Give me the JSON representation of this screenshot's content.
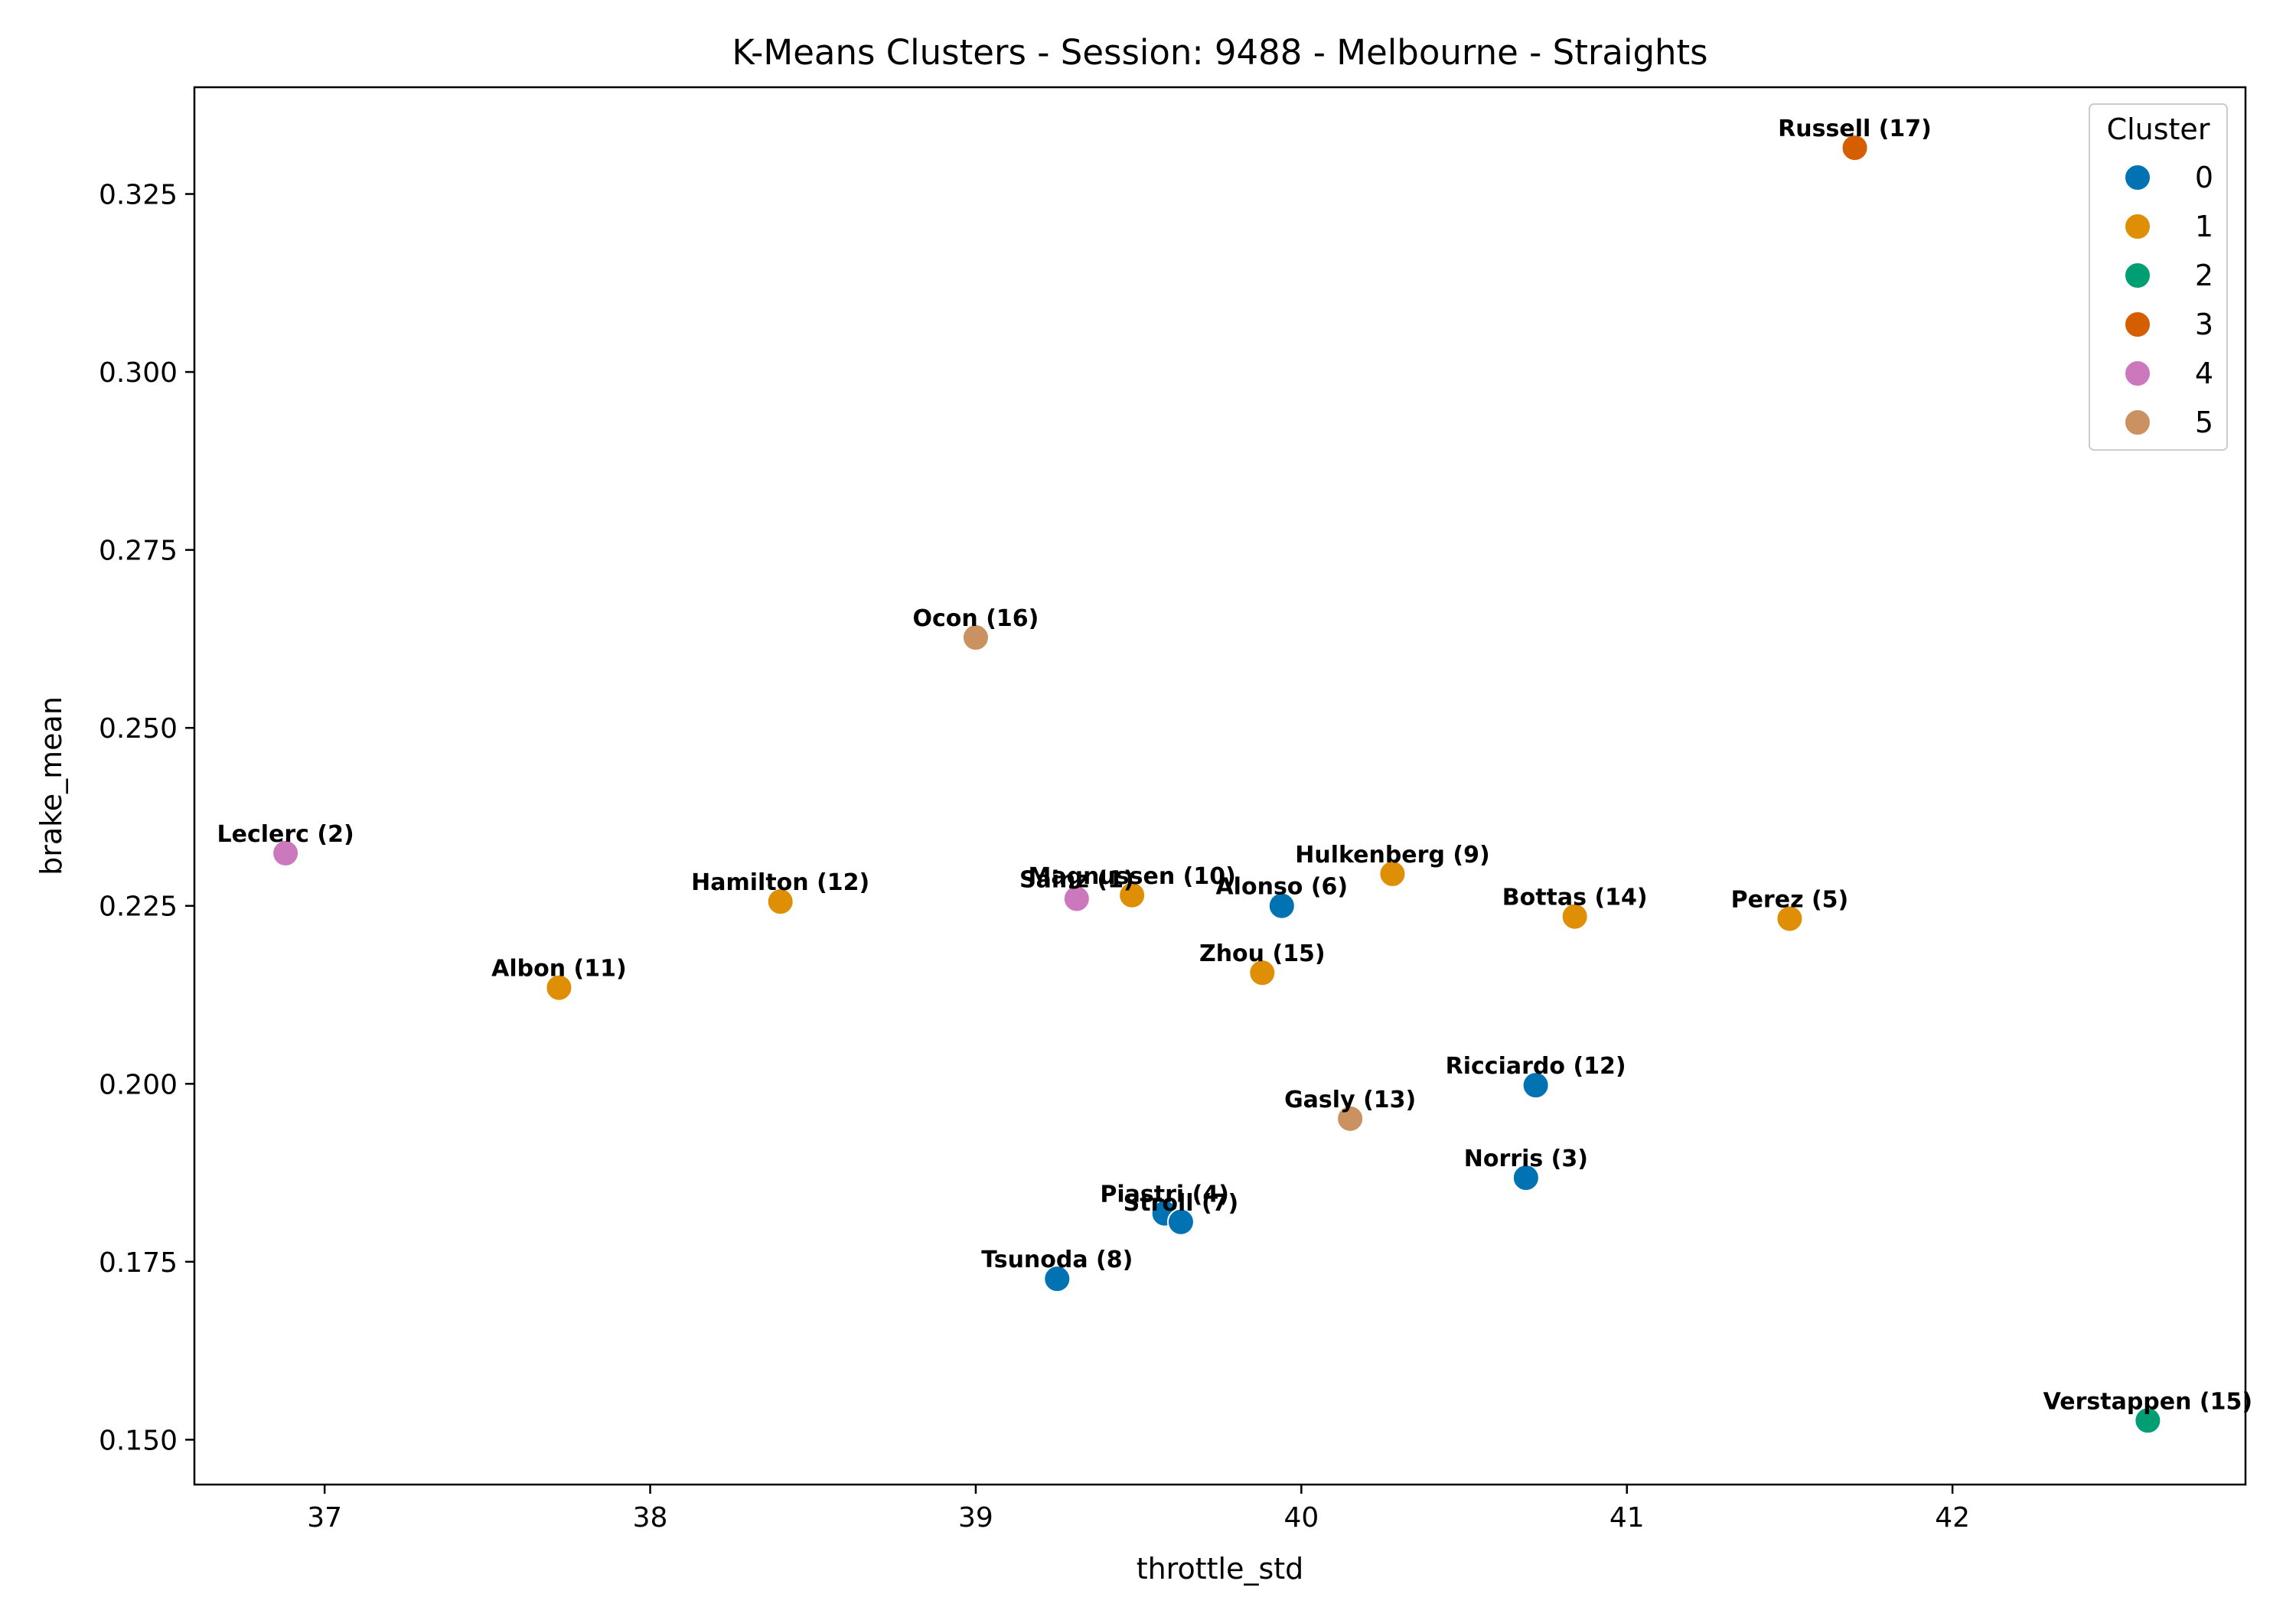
{
  "chart_data": {
    "type": "scatter",
    "title": "K-Means Clusters - Session: 9488 - Melbourne - Straights",
    "xlabel": "throttle_std",
    "ylabel": "brake_mean",
    "xlim": [
      36.6,
      42.9
    ],
    "ylim": [
      0.1437,
      0.34
    ],
    "xticks": [
      37,
      38,
      39,
      40,
      41,
      42
    ],
    "yticks": [
      0.15,
      0.175,
      0.2,
      0.225,
      0.25,
      0.275,
      0.3,
      0.325
    ],
    "ytick_labels": [
      "0.150",
      "0.175",
      "0.200",
      "0.225",
      "0.250",
      "0.275",
      "0.300",
      "0.325"
    ],
    "grid": false,
    "legend": {
      "title": "Cluster",
      "placement": "top-right",
      "entries": [
        {
          "label": "0",
          "color": "#0173b2"
        },
        {
          "label": "1",
          "color": "#de8f05"
        },
        {
          "label": "2",
          "color": "#029e73"
        },
        {
          "label": "3",
          "color": "#d55e00"
        },
        {
          "label": "4",
          "color": "#cc78bc"
        },
        {
          "label": "5",
          "color": "#ca9161"
        }
      ]
    },
    "points": [
      {
        "label": "Russell (17)",
        "x": 41.7,
        "y": 0.3315,
        "cluster": 3
      },
      {
        "label": "Ocon (16)",
        "x": 39.0,
        "y": 0.2627,
        "cluster": 5
      },
      {
        "label": "Leclerc (2)",
        "x": 36.88,
        "y": 0.2324,
        "cluster": 4
      },
      {
        "label": "Hamilton (12)",
        "x": 38.4,
        "y": 0.2256,
        "cluster": 1
      },
      {
        "label": "Sainz (1)",
        "x": 39.31,
        "y": 0.226,
        "cluster": 4
      },
      {
        "label": "Magnussen (10)",
        "x": 39.48,
        "y": 0.2265,
        "cluster": 1
      },
      {
        "label": "Alonso (6)",
        "x": 39.94,
        "y": 0.225,
        "cluster": 0
      },
      {
        "label": "Hulkenberg (9)",
        "x": 40.28,
        "y": 0.2295,
        "cluster": 1
      },
      {
        "label": "Bottas (14)",
        "x": 40.84,
        "y": 0.2235,
        "cluster": 1
      },
      {
        "label": "Perez (5)",
        "x": 41.5,
        "y": 0.2232,
        "cluster": 1
      },
      {
        "label": "Albon (11)",
        "x": 37.72,
        "y": 0.2135,
        "cluster": 1
      },
      {
        "label": "Zhou (15)",
        "x": 39.88,
        "y": 0.2156,
        "cluster": 1
      },
      {
        "label": "Ricciardo (12)",
        "x": 40.72,
        "y": 0.1998,
        "cluster": 0
      },
      {
        "label": "Gasly (13)",
        "x": 40.15,
        "y": 0.1951,
        "cluster": 5
      },
      {
        "label": "Norris (3)",
        "x": 40.69,
        "y": 0.1868,
        "cluster": 0
      },
      {
        "label": "Piastri (4)",
        "x": 39.58,
        "y": 0.1818,
        "cluster": 0
      },
      {
        "label": "Stroll (7)",
        "x": 39.63,
        "y": 0.1806,
        "cluster": 0
      },
      {
        "label": "Tsunoda (8)",
        "x": 39.25,
        "y": 0.1726,
        "cluster": 0
      },
      {
        "label": "Verstappen (15)",
        "x": 42.6,
        "y": 0.1527,
        "cluster": 2
      }
    ]
  }
}
